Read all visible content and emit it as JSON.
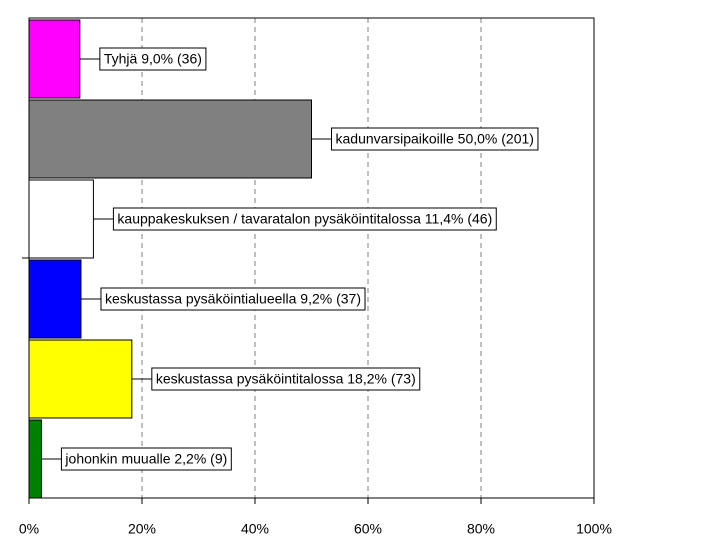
{
  "chart_data": {
    "type": "hbar",
    "labels": [
      "Tyhjä 9,0% (36)",
      "kadunvarsipaikoille 50,0% (201)",
      "kauppakeskuksen / tavaratalon pysäköintitalossa 11,4% (46)",
      "keskustassa pysäköintialueella 9,2% (37)",
      "keskustassa pysäköintitalossa 18,2% (73)",
      "johonkin muualle 2,2% (9)"
    ],
    "values": [
      9.0,
      50.0,
      11.4,
      9.2,
      18.2,
      2.2
    ],
    "colors": [
      "#ff00ff",
      "#808080",
      "#ffffff",
      "#0000ff",
      "#ffff00",
      "#008000"
    ],
    "xlim": [
      0,
      100
    ],
    "xticks": [
      {
        "value": 0,
        "label": "0%"
      },
      {
        "value": 20,
        "label": "20%"
      },
      {
        "value": 40,
        "label": "40%"
      },
      {
        "value": 60,
        "label": "60%"
      },
      {
        "value": 80,
        "label": "80%"
      },
      {
        "value": 100,
        "label": "100%"
      }
    ],
    "grid": true
  }
}
